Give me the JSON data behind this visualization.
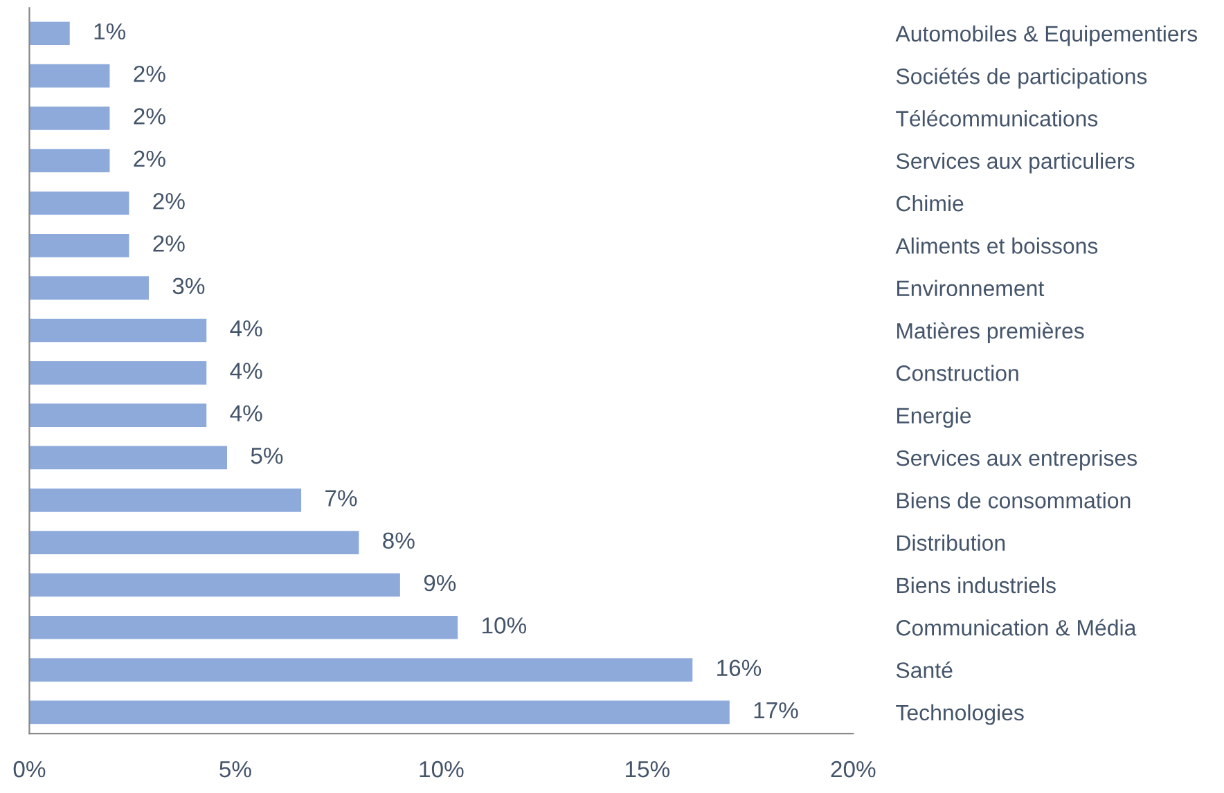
{
  "chart_data": {
    "type": "bar",
    "orientation": "horizontal",
    "categories": [
      "Automobiles & Equipementiers",
      "Sociétés de participations",
      "Télécommunications",
      "Services aux particuliers",
      "Chimie",
      "Aliments et boissons",
      "Environnement",
      "Matières premières",
      "Construction",
      "Energie",
      "Services aux entreprises",
      "Biens de consommation",
      "Distribution",
      "Biens industriels",
      "Communication & Média",
      "Santé",
      "Technologies"
    ],
    "values": [
      0.98,
      1.95,
      1.95,
      1.95,
      2.42,
      2.42,
      2.9,
      4.3,
      4.3,
      4.3,
      4.8,
      6.6,
      8.0,
      9.0,
      10.4,
      16.1,
      17.0
    ],
    "value_labels": [
      "1%",
      "2%",
      "2%",
      "2%",
      "2%",
      "2%",
      "3%",
      "4%",
      "4%",
      "4%",
      "5%",
      "7%",
      "8%",
      "9%",
      "10%",
      "16%",
      "17%"
    ],
    "color": "#8eaadb",
    "xlim": [
      0,
      20
    ],
    "xticks": [
      {
        "value": 0,
        "label": "0%"
      },
      {
        "value": 5,
        "label": "5%"
      },
      {
        "value": 10,
        "label": "10%"
      },
      {
        "value": 15,
        "label": "15%"
      },
      {
        "value": 20,
        "label": "20%"
      }
    ],
    "grid": false,
    "legend": false
  }
}
